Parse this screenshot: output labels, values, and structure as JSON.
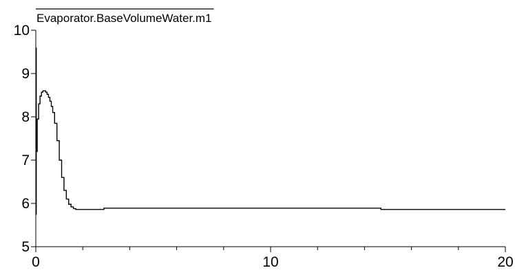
{
  "colors": {
    "background": "#ffffff",
    "axis": "#000000",
    "series": "#000000"
  },
  "chart_data": {
    "type": "line",
    "title": "",
    "xlabel": "",
    "ylabel": "",
    "xlim": [
      0,
      20
    ],
    "ylim": [
      5,
      10
    ],
    "grid": false,
    "legend_position": "top-left",
    "x_major_ticks": [
      0,
      10,
      20
    ],
    "x_minor_ticks": [
      2,
      4,
      6,
      8,
      12,
      14,
      16,
      18
    ],
    "y_ticks": [
      5,
      6,
      7,
      8,
      9,
      10
    ],
    "x_tick_labels": [
      "0",
      "10",
      "20"
    ],
    "y_tick_labels": [
      "5",
      "6",
      "7",
      "8",
      "9",
      "10"
    ],
    "series": [
      {
        "name": "Evaporator.BaseVolumeWater.m1",
        "step": true,
        "x": [
          0,
          0.02,
          0.02,
          0.06,
          0.06,
          0.12,
          0.18,
          0.24,
          0.3,
          0.36,
          0.42,
          0.48,
          0.54,
          0.6,
          0.66,
          0.72,
          0.8,
          0.9,
          1.0,
          1.1,
          1.2,
          1.3,
          1.4,
          1.5,
          1.6,
          1.7,
          1.8,
          2.9,
          2.9,
          14.7,
          14.7,
          20
        ],
        "y": [
          5.75,
          9.6,
          7.2,
          7.2,
          7.95,
          8.3,
          8.48,
          8.57,
          8.6,
          8.6,
          8.57,
          8.52,
          8.45,
          8.36,
          8.24,
          8.1,
          7.85,
          7.45,
          7.0,
          6.6,
          6.3,
          6.1,
          5.98,
          5.92,
          5.88,
          5.86,
          5.86,
          5.86,
          5.89,
          5.89,
          5.86,
          5.86
        ]
      }
    ]
  }
}
